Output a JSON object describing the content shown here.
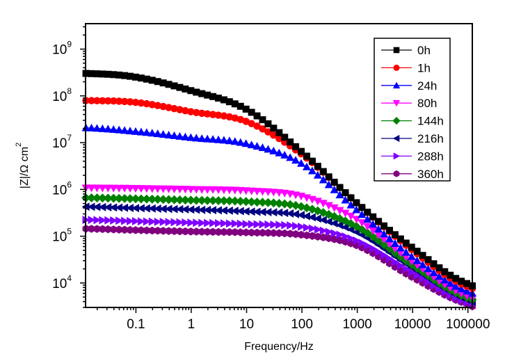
{
  "chart_data": {
    "type": "scatter",
    "title": "",
    "xlabel": "Frequency/Hz",
    "ylabel": "|Z|/Ω cm",
    "ylabel_superscript": "2",
    "xscale": "log",
    "yscale": "log",
    "xlim": [
      0.0123,
      120000
    ],
    "ylim": [
      3000,
      3500000000
    ],
    "grid": false,
    "legend_position": "top-right",
    "x_ticks": [
      {
        "value": 0.1,
        "label": "0.1"
      },
      {
        "value": 1,
        "label": "1"
      },
      {
        "value": 10,
        "label": "10"
      },
      {
        "value": 100,
        "label": "100"
      },
      {
        "value": 1000,
        "label": "1000"
      },
      {
        "value": 10000,
        "label": "10000"
      },
      {
        "value": 100000,
        "label": "100000"
      }
    ],
    "y_ticks": [
      {
        "value": 10000,
        "base": "10",
        "exp": "4"
      },
      {
        "value": 100000,
        "base": "10",
        "exp": "5"
      },
      {
        "value": 1000000,
        "base": "10",
        "exp": "6"
      },
      {
        "value": 10000000,
        "base": "10",
        "exp": "7"
      },
      {
        "value": 100000000,
        "base": "10",
        "exp": "8"
      },
      {
        "value": 1000000000,
        "base": "10",
        "exp": "9"
      }
    ],
    "anchor_frequencies": [
      0.0125,
      0.1,
      1,
      10,
      100,
      1000,
      10000,
      100000,
      120000
    ],
    "points_per_decade": 10,
    "series": [
      {
        "name": "0h",
        "color": "#000000",
        "marker": "square",
        "log10_z": [
          8.48,
          8.4,
          8.11,
          7.71,
          6.8,
          5.7,
          4.75,
          3.98,
          3.94
        ]
      },
      {
        "name": "1h",
        "color": "#ff0000",
        "marker": "circle",
        "log10_z": [
          7.9,
          7.86,
          7.66,
          7.45,
          6.75,
          5.7,
          4.7,
          3.92,
          3.88
        ]
      },
      {
        "name": "24h",
        "color": "#0000ff",
        "marker": "triangle-up",
        "log10_z": [
          7.32,
          7.24,
          7.11,
          6.98,
          6.55,
          5.55,
          4.55,
          3.82,
          3.78
        ]
      },
      {
        "name": "80h",
        "color": "#ff00ff",
        "marker": "triangle-down",
        "log10_z": [
          6.03,
          6.02,
          6.0,
          5.97,
          5.85,
          5.35,
          4.45,
          3.72,
          3.68
        ]
      },
      {
        "name": "144h",
        "color": "#008000",
        "marker": "diamond",
        "log10_z": [
          5.82,
          5.8,
          5.77,
          5.74,
          5.63,
          5.2,
          4.38,
          3.68,
          3.64
        ]
      },
      {
        "name": "216h",
        "color": "#000080",
        "marker": "triangle-left",
        "log10_z": [
          5.63,
          5.6,
          5.57,
          5.53,
          5.45,
          5.08,
          4.32,
          3.64,
          3.6
        ]
      },
      {
        "name": "288h",
        "color": "#8000ff",
        "marker": "triangle-right",
        "log10_z": [
          5.35,
          5.32,
          5.29,
          5.26,
          5.2,
          4.9,
          4.22,
          3.58,
          3.55
        ]
      },
      {
        "name": "360h",
        "color": "#800080",
        "marker": "hexagon",
        "log10_z": [
          5.16,
          5.13,
          5.1,
          5.08,
          5.03,
          4.8,
          4.12,
          3.55,
          3.5
        ]
      }
    ]
  }
}
